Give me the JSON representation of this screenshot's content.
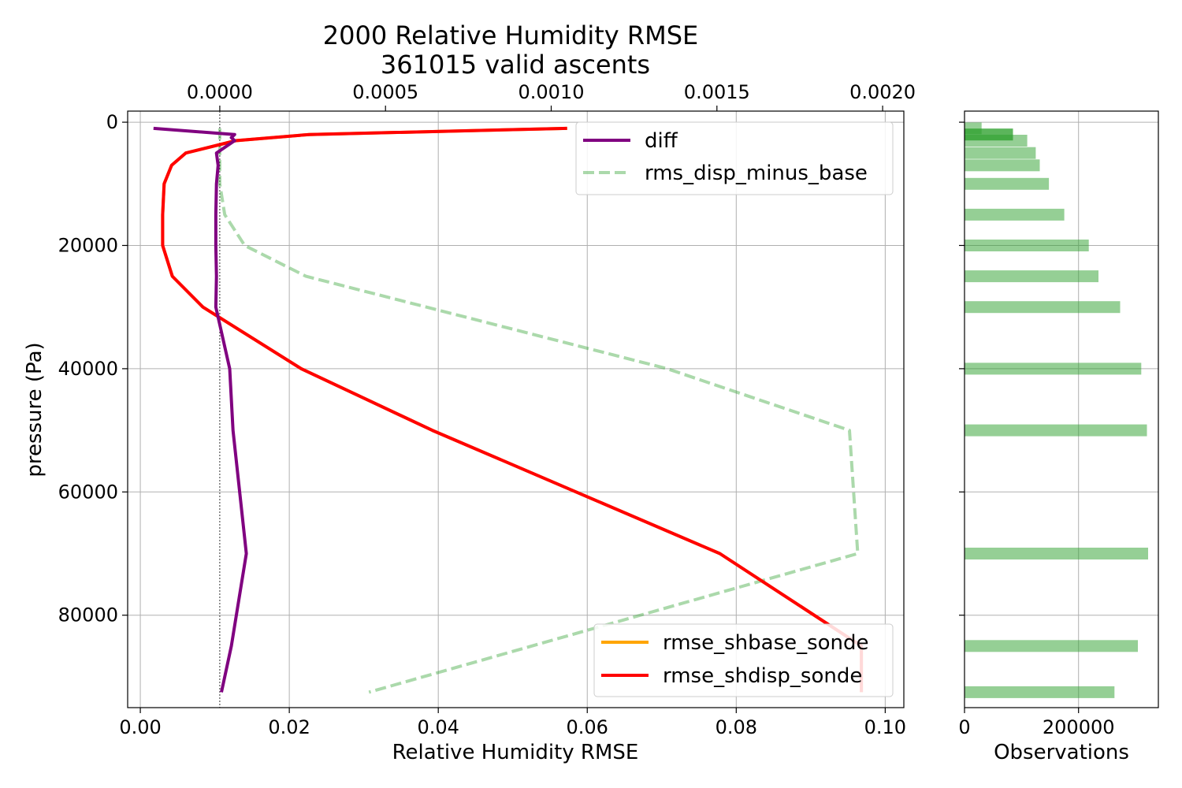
{
  "chart_data": [
    {
      "type": "line",
      "title": [
        "2000 Relative Humidity RMSE",
        "361015 valid ascents"
      ],
      "xlabel": "Relative Humidity RMSE",
      "ylabel": "pressure (Pa)",
      "xlim": [
        -0.0017,
        0.1025
      ],
      "ylim": [
        95000,
        -1800
      ],
      "y_inverted": true,
      "grid": true,
      "x_ticks": [
        0.0,
        0.02,
        0.04,
        0.06,
        0.08,
        0.1
      ],
      "x_tick_labels": [
        "0.00",
        "0.02",
        "0.04",
        "0.06",
        "0.08",
        "0.10"
      ],
      "y_ticks": [
        0,
        20000,
        40000,
        60000,
        80000
      ],
      "y_tick_labels": [
        "0",
        "20000",
        "40000",
        "60000",
        "80000"
      ],
      "secondary_x": {
        "xlim": [
          -0.000278,
          0.002064
        ],
        "ticks": [
          0.0,
          0.0005,
          0.001,
          0.0015,
          0.002
        ],
        "tick_labels": [
          "0.0000",
          "0.0005",
          "0.0010",
          "0.0015",
          "0.0020"
        ]
      },
      "series": [
        {
          "name": "rmse_shbase_sonde",
          "axis": "bottom",
          "color": "#ffa500",
          "style": "solid",
          "x": [
            0.0573,
            0.0227,
            0.0128,
            0.0061,
            0.0042,
            0.0032,
            0.003,
            0.003,
            0.003,
            0.0043,
            0.0084,
            0.0216,
            0.0392,
            0.0778,
            0.0968,
            0.0968
          ],
          "y": [
            1000,
            2000,
            3000,
            5000,
            7000,
            10000,
            15000,
            20000,
            20000,
            25000,
            30000,
            40000,
            50000,
            70000,
            85000,
            92500
          ]
        },
        {
          "name": "rmse_shdisp_sonde",
          "axis": "bottom",
          "color": "#ff0000",
          "style": "solid",
          "x": [
            0.0573,
            0.0227,
            0.0128,
            0.0061,
            0.0042,
            0.0032,
            0.003,
            0.003,
            0.003,
            0.0043,
            0.0084,
            0.0216,
            0.0392,
            0.0778,
            0.0968,
            0.0968
          ],
          "y": [
            1000,
            2000,
            3000,
            5000,
            7000,
            10000,
            15000,
            20000,
            20000,
            25000,
            30000,
            40000,
            50000,
            70000,
            85000,
            92500
          ]
        },
        {
          "name": "diff",
          "axis": "top",
          "color": "#800080",
          "style": "solid",
          "x": [
            -0.0002,
            4.5e-05,
            3.5e-05,
            4.5e-05,
            -1e-05,
            -5e-06,
            -1e-05,
            -1.2e-05,
            -1.2e-05,
            -1e-05,
            -1.2e-05,
            3e-05,
            4e-05,
            8e-05,
            3.5e-05,
            5e-06
          ],
          "y": [
            1000,
            2000,
            2500,
            3000,
            5000,
            7000,
            10000,
            15000,
            20000,
            25000,
            30000,
            40000,
            50000,
            70000,
            85000,
            92500
          ]
        },
        {
          "name": "rms_disp_minus_base",
          "axis": "top",
          "color": "#2ca02c",
          "alpha": 0.4,
          "style": "dashed",
          "x": [
            0.0,
            0.0,
            0.0,
            0.0,
            0.0,
            0.0,
            1.5e-05,
            7.5e-05,
            0.00026,
            0.00135,
            0.0019,
            0.001925,
            0.00045
          ],
          "y": [
            1000,
            2000,
            3000,
            5000,
            7000,
            10000,
            15000,
            20000,
            25000,
            40000,
            50000,
            70000,
            92500
          ]
        }
      ],
      "vertical_reference_line": {
        "axis": "top",
        "x": 0.0,
        "style": "dotted",
        "color": "#000000"
      },
      "legends": [
        {
          "placement": "upper-right",
          "entries": [
            "diff",
            "rms_disp_minus_base"
          ]
        },
        {
          "placement": "lower-right",
          "entries": [
            "rmse_shbase_sonde",
            "rmse_shdisp_sonde"
          ]
        }
      ]
    },
    {
      "type": "bar",
      "orientation": "horizontal",
      "xlabel": "Observations",
      "xlim": [
        0,
        340000
      ],
      "ylim": [
        95000,
        -1800
      ],
      "grid": true,
      "x_ticks": [
        0,
        200000
      ],
      "x_tick_labels": [
        "0",
        "200000"
      ],
      "bars_light": {
        "color": "#2ca02c",
        "alpha": 0.5,
        "pressure": [
          1000,
          2000,
          3000,
          5000,
          7000,
          10000,
          15000,
          20000,
          25000,
          30000,
          40000,
          50000,
          70000,
          85000,
          92500
        ],
        "values": [
          30000,
          85000,
          110000,
          125000,
          132000,
          148000,
          175000,
          218000,
          235000,
          273000,
          310000,
          320000,
          322000,
          304000,
          263000
        ]
      },
      "bars_dark": {
        "color": "#2ca02c",
        "alpha": 0.55,
        "pressure": [
          2000
        ],
        "values": [
          85000
        ]
      }
    }
  ]
}
